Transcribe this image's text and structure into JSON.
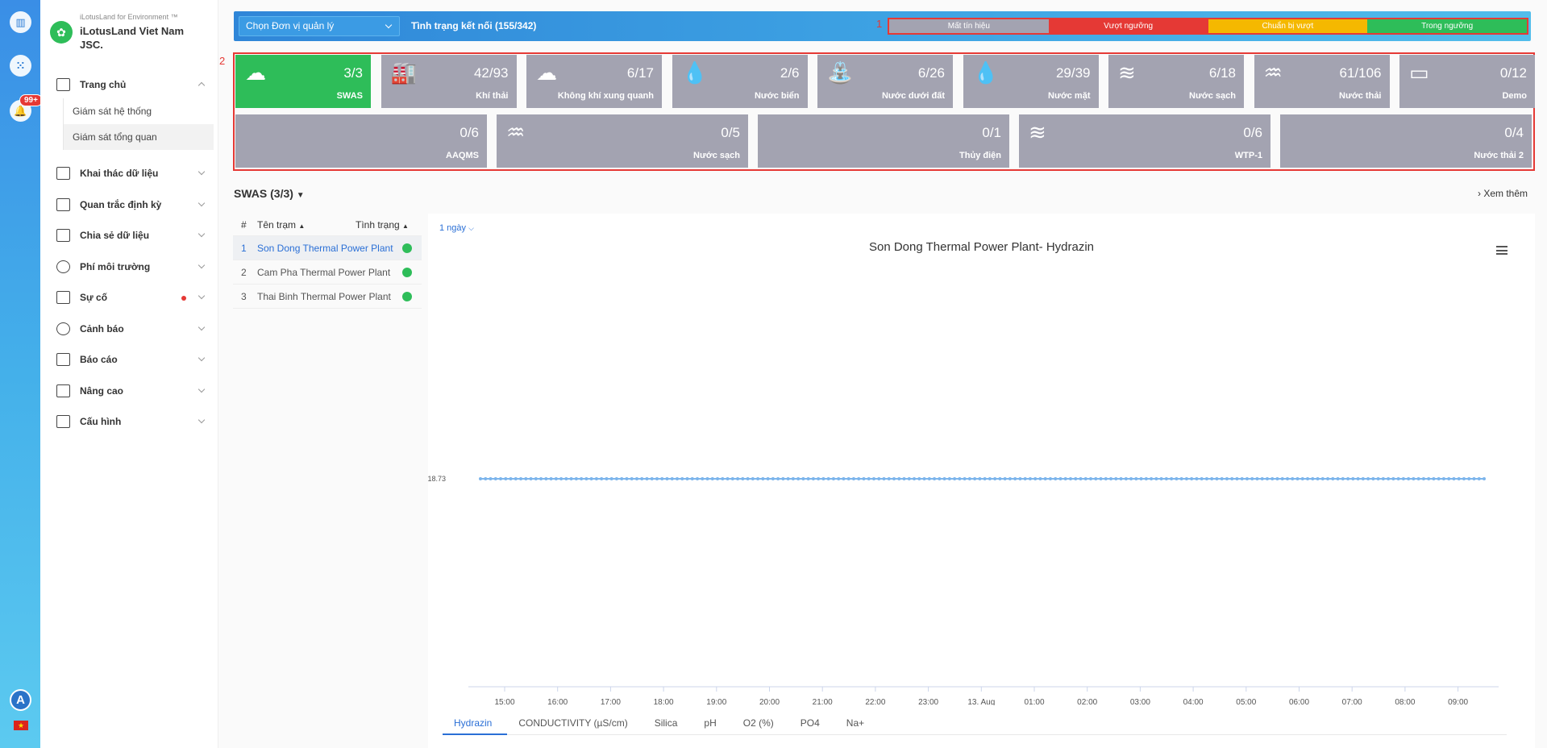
{
  "brand": {
    "subtitle": "iLotusLand for Environment ™",
    "name": "iLotusLand Viet Nam JSC."
  },
  "rail": {
    "badge": "99+",
    "avatar": "A"
  },
  "menu": {
    "home": "Trang chủ",
    "home_sub": [
      "Giám sát hệ thống",
      "Giám sát tổng quan"
    ],
    "items": [
      "Khai thác dữ liệu",
      "Quan trắc định kỳ",
      "Chia sẻ dữ liệu",
      "Phí môi trường",
      "Sự cố",
      "Cảnh báo",
      "Báo cáo",
      "Nâng cao",
      "Cấu hình"
    ]
  },
  "topbar": {
    "unit_select": "Chọn Đơn vị quản lý",
    "connection": "Tình trạng kết nối (155/342)",
    "annotation": "1"
  },
  "legend": [
    {
      "label": "Mất tín hiệu",
      "color": "#a3a3b1"
    },
    {
      "label": "Vượt ngưỡng",
      "color": "#e53935"
    },
    {
      "label": "Chuẩn bị vượt",
      "color": "#f5b800"
    },
    {
      "label": "Trong ngưỡng",
      "color": "#2ebd59"
    }
  ],
  "tiles_annotation": "2",
  "tiles_row1": [
    {
      "count": "3/3",
      "label": "SWAS",
      "icon": "cloud-icon",
      "glyph": "☁",
      "color": "#2ebd59"
    },
    {
      "count": "42/93",
      "label": "Khí thải",
      "icon": "factory-icon",
      "glyph": "🏭",
      "color": "#a3a3b1"
    },
    {
      "count": "6/17",
      "label": "Không khí xung quanh",
      "icon": "cloud-icon",
      "glyph": "☁",
      "color": "#a3a3b1"
    },
    {
      "count": "2/6",
      "label": "Nước biển",
      "icon": "water-drops-icon",
      "glyph": "💧",
      "color": "#a3a3b1"
    },
    {
      "count": "6/26",
      "label": "Nước dưới đất",
      "icon": "well-icon",
      "glyph": "⛲",
      "color": "#a3a3b1"
    },
    {
      "count": "29/39",
      "label": "Nước mặt",
      "icon": "water-drop-icon",
      "glyph": "💧",
      "color": "#a3a3b1"
    },
    {
      "count": "6/18",
      "label": "Nước sạch",
      "icon": "waves-icon",
      "glyph": "≋",
      "color": "#a3a3b1"
    },
    {
      "count": "61/106",
      "label": "Nước thải",
      "icon": "wastewater-icon",
      "glyph": "♒",
      "color": "#a3a3b1"
    },
    {
      "count": "0/12",
      "label": "Demo",
      "icon": "cast-icon",
      "glyph": "▭",
      "color": "#a3a3b1"
    }
  ],
  "tiles_row2": [
    {
      "count": "0/6",
      "label": "AAQMS",
      "icon": "",
      "glyph": "",
      "color": "#a3a3b1"
    },
    {
      "count": "0/5",
      "label": "Nước sạch",
      "icon": "wastewater-icon",
      "glyph": "♒",
      "color": "#a3a3b1"
    },
    {
      "count": "0/1",
      "label": "Thủy điện",
      "icon": "",
      "glyph": "",
      "color": "#a3a3b1"
    },
    {
      "count": "0/6",
      "label": "WTP-1",
      "icon": "waves-icon",
      "glyph": "≋",
      "color": "#a3a3b1"
    },
    {
      "count": "0/4",
      "label": "Nước thải 2",
      "icon": "",
      "glyph": "",
      "color": "#a3a3b1"
    }
  ],
  "section": {
    "title": "SWAS  (3/3)",
    "more": "Xem thêm"
  },
  "stations": {
    "col_idx": "#",
    "col_name": "Tên trạm",
    "col_status": "Tình trạng",
    "rows": [
      {
        "idx": "1",
        "name": "Son Dong Thermal Power Plant"
      },
      {
        "idx": "2",
        "name": "Cam Pha Thermal Power Plant"
      },
      {
        "idx": "3",
        "name": "Thai Binh Thermal Power Plant"
      }
    ]
  },
  "chart": {
    "period": "1 ngày",
    "tabs": [
      "Hydrazin",
      "CONDUCTIVITY (µS/cm)",
      "Silica",
      "pH",
      "O2 (%)",
      "PO4",
      "Na+"
    ]
  },
  "chart_data": {
    "type": "line",
    "title": "Son Dong Thermal Power Plant- Hydrazin",
    "x": [
      "15:00",
      "16:00",
      "17:00",
      "18:00",
      "19:00",
      "20:00",
      "21:00",
      "22:00",
      "23:00",
      "13. Aug",
      "01:00",
      "02:00",
      "03:00",
      "04:00",
      "05:00",
      "06:00",
      "07:00",
      "08:00",
      "09:00"
    ],
    "series": [
      {
        "values": [
          18.73,
          18.73,
          18.73,
          18.73,
          18.73,
          18.73,
          18.73,
          18.73,
          18.73,
          18.73,
          18.73,
          18.73,
          18.73,
          18.73,
          18.73,
          18.73,
          18.73,
          18.73,
          18.73
        ],
        "color": "#7cb5ec"
      }
    ],
    "y_ticks": [
      "18.73"
    ],
    "grid": false
  }
}
